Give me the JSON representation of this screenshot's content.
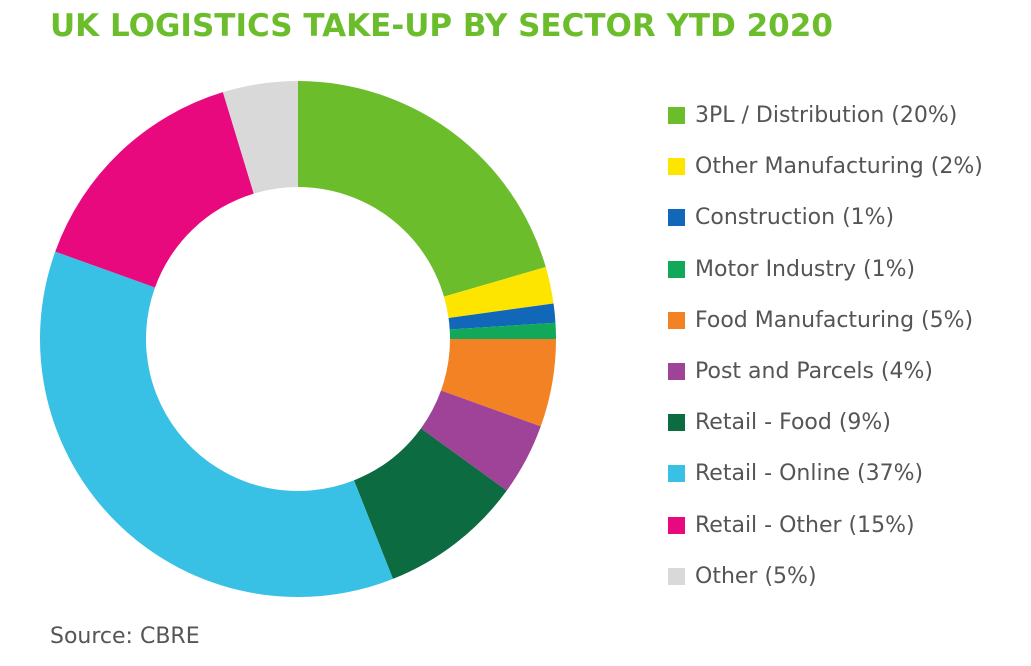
{
  "chart_data": {
    "type": "pie",
    "donut": true,
    "title": "UK LOGISTICS TAKE-UP BY SECTOR YTD 2020",
    "source": "Source: CBRE",
    "title_color": "#6cbd2c",
    "slices": [
      {
        "label": "3PL / Distribution (20%)",
        "name": "3PL / Distribution",
        "value": 20.5,
        "color": "#6cbd2c"
      },
      {
        "label": "Other Manufacturing (2%)",
        "name": "Other Manufacturing",
        "value": 2.3,
        "color": "#fde500"
      },
      {
        "label": "Construction (1%)",
        "name": "Construction",
        "value": 1.2,
        "color": "#1268b8"
      },
      {
        "label": "Motor Industry (1%)",
        "name": "Motor Industry",
        "value": 1.0,
        "color": "#12a85a"
      },
      {
        "label": "Food Manufacturing (5%)",
        "name": "Food Manufacturing",
        "value": 5.5,
        "color": "#f28224"
      },
      {
        "label": "Post and Parcels (4%)",
        "name": "Post and Parcels",
        "value": 4.5,
        "color": "#9e4397"
      },
      {
        "label": "Retail - Food (9%)",
        "name": "Retail - Food",
        "value": 9.0,
        "color": "#0c6b41"
      },
      {
        "label": "Retail - Online (37%)",
        "name": "Retail - Online",
        "value": 36.5,
        "color": "#38c1e4"
      },
      {
        "label": "Retail - Other (15%)",
        "name": "Retail - Other",
        "value": 14.8,
        "color": "#e8097f"
      },
      {
        "label": "Other (5%)",
        "name": "Other",
        "value": 4.7,
        "color": "#d9d9d9"
      }
    ]
  }
}
